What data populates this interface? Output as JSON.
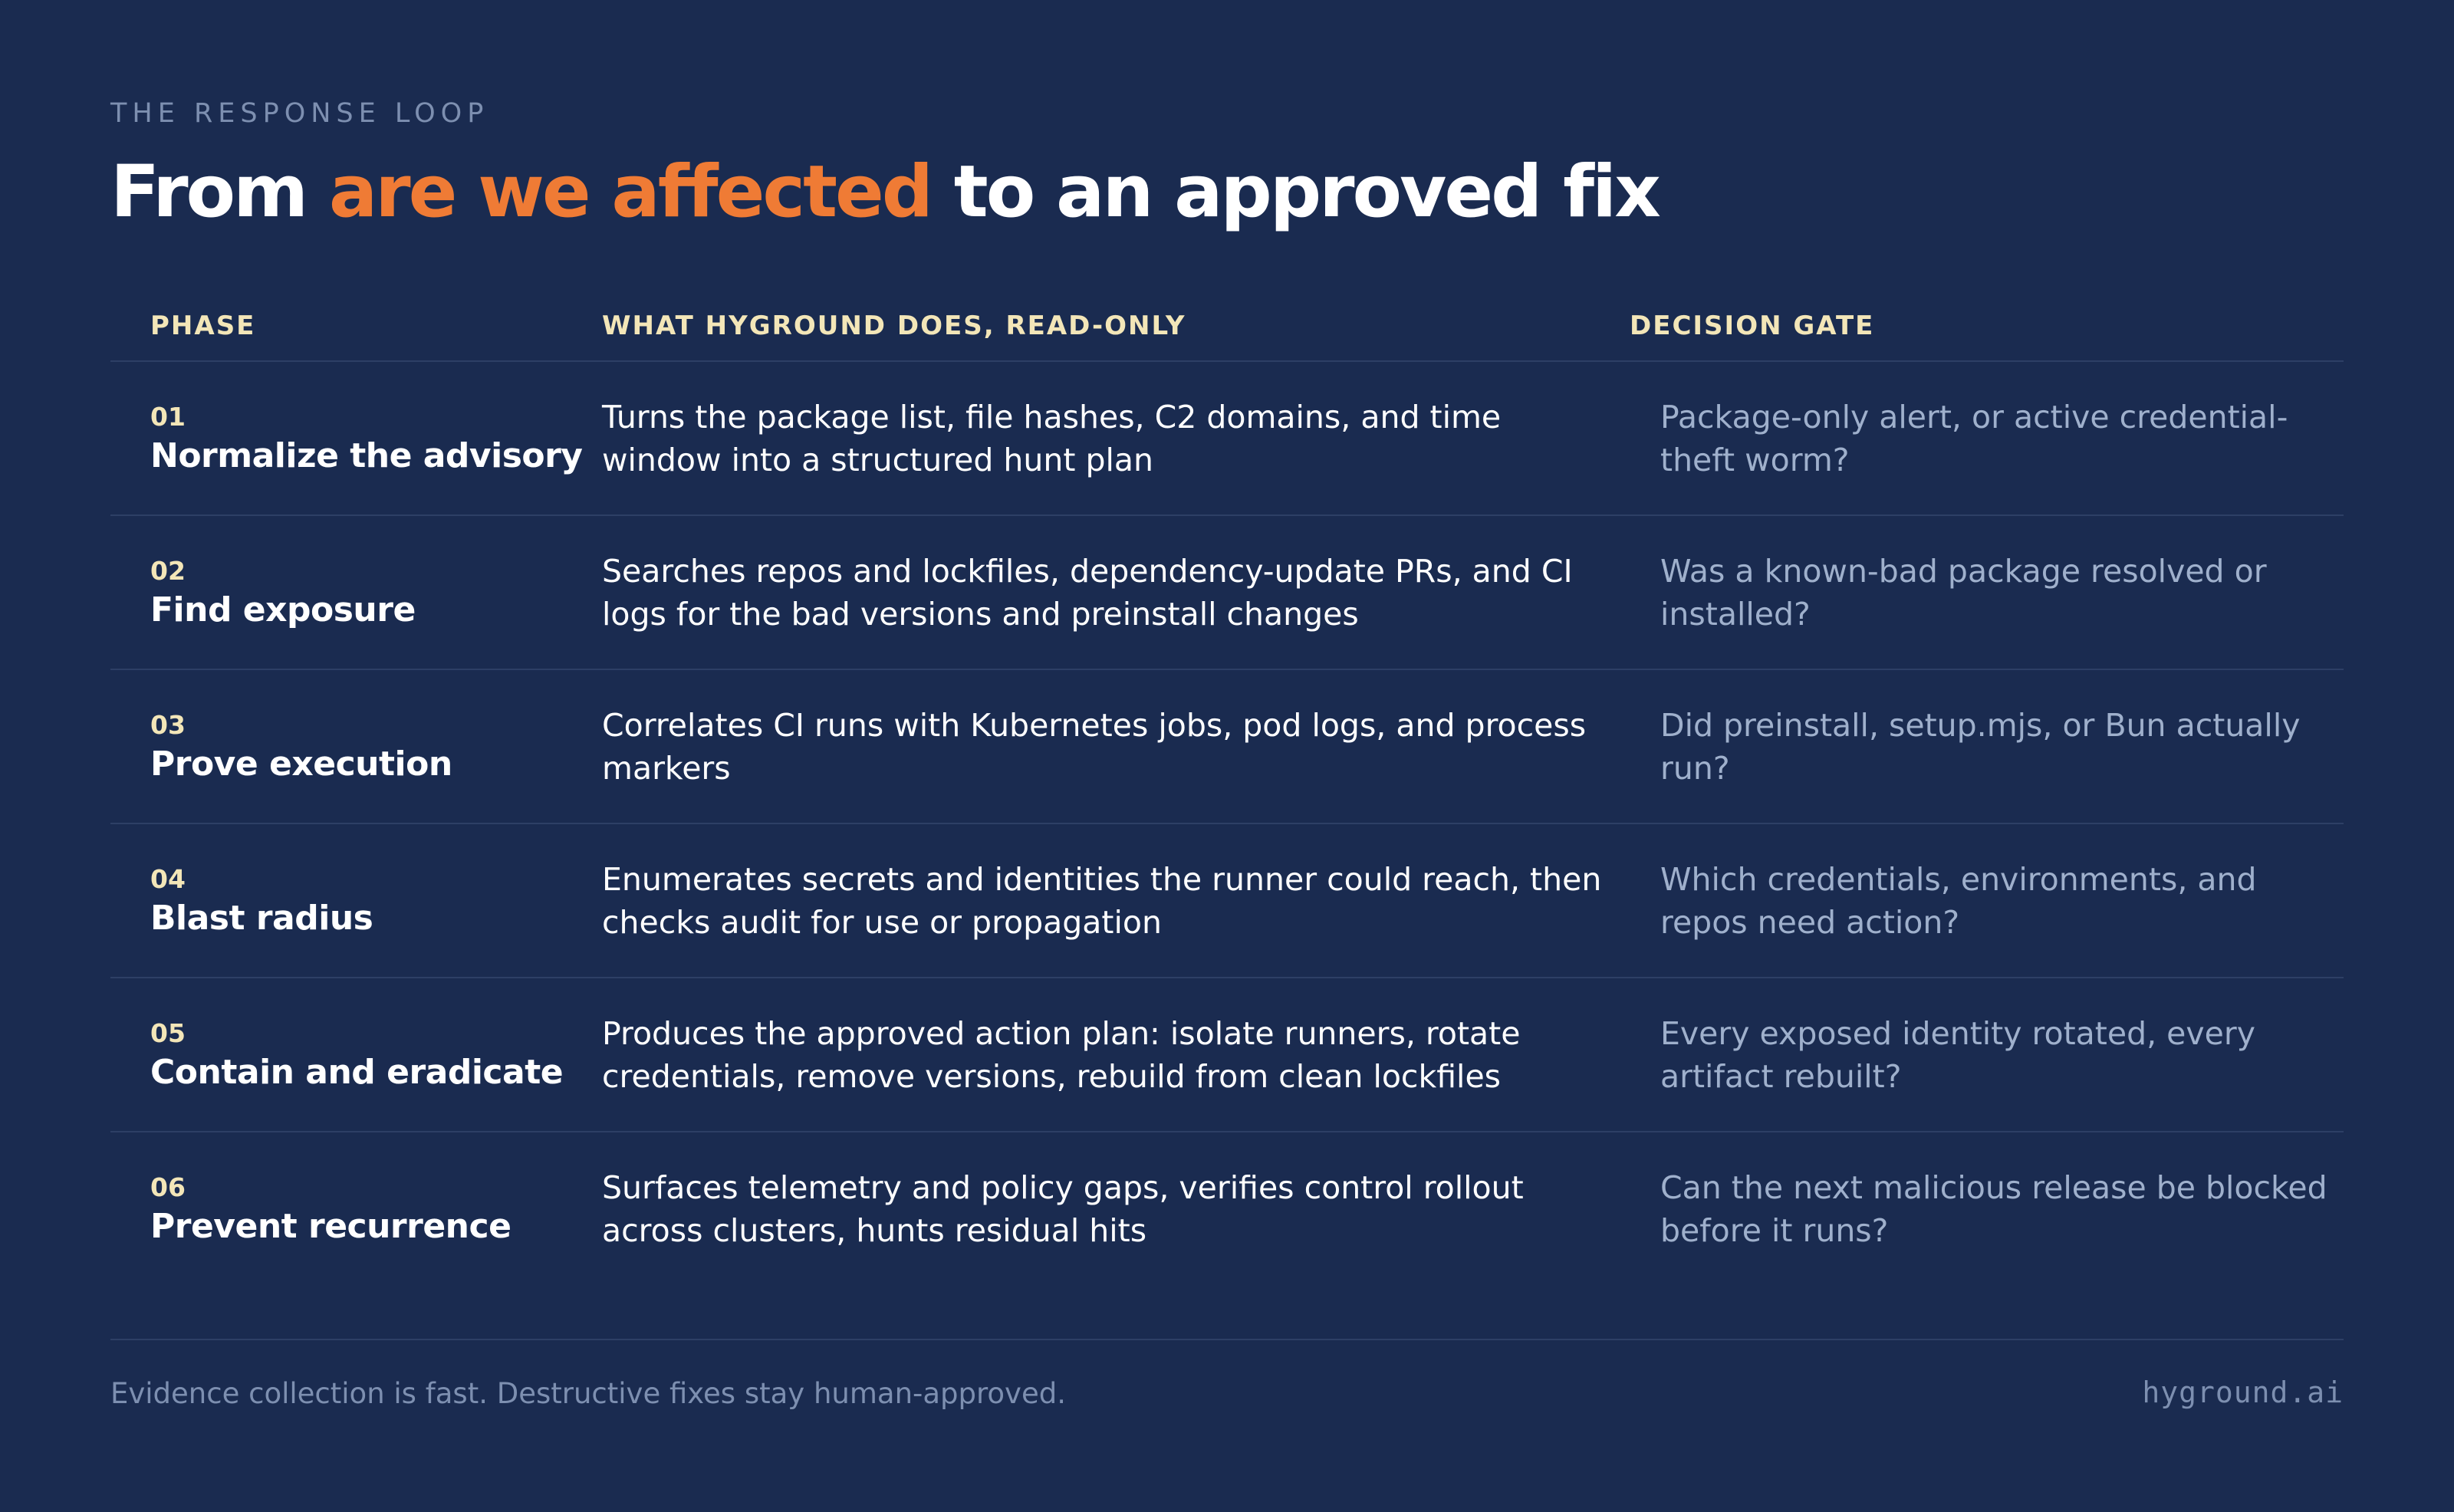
{
  "eyebrow": "THE RESPONSE LOOP",
  "headline": {
    "part1": "From ",
    "accent": "are we affected",
    "part2": " to an approved fix"
  },
  "colors": {
    "background": "#1a2b50",
    "accent": "#ef7b35",
    "header_text": "#f3e6b8",
    "muted_text": "#9fb0cc"
  },
  "table": {
    "headers": [
      "PHASE",
      "WHAT HYGROUND DOES, READ-ONLY",
      "DECISION GATE"
    ],
    "rows": [
      {
        "num": "01",
        "phase": "Normalize the advisory",
        "does": "Turns the package list, file hashes, C2 domains, and time window into a structured hunt plan",
        "gate": "Package-only alert, or active credential-theft worm?"
      },
      {
        "num": "02",
        "phase": "Find exposure",
        "does": "Searches repos and lockfiles, dependency-update PRs, and CI logs for the bad versions and preinstall changes",
        "gate": "Was a known-bad package resolved or installed?"
      },
      {
        "num": "03",
        "phase": "Prove execution",
        "does": "Correlates CI runs with Kubernetes jobs, pod logs, and process markers",
        "gate": "Did preinstall, setup.mjs, or Bun actually run?"
      },
      {
        "num": "04",
        "phase": "Blast radius",
        "does": "Enumerates secrets and identities the runner could reach, then checks audit for use or propagation",
        "gate": "Which credentials, environments, and repos need action?"
      },
      {
        "num": "05",
        "phase": "Contain and eradicate",
        "does": "Produces the approved action plan: isolate runners, rotate credentials, remove versions, rebuild from clean lockfiles",
        "gate": "Every exposed identity rotated, every artifact rebuilt?"
      },
      {
        "num": "06",
        "phase": "Prevent recurrence",
        "does": "Surfaces telemetry and policy gaps, verifies control rollout across clusters, hunts residual hits",
        "gate": "Can the next malicious release be blocked before it runs?"
      }
    ]
  },
  "footer": {
    "note": "Evidence collection is fast. Destructive fixes stay human-approved.",
    "brand": "hyground.ai"
  }
}
